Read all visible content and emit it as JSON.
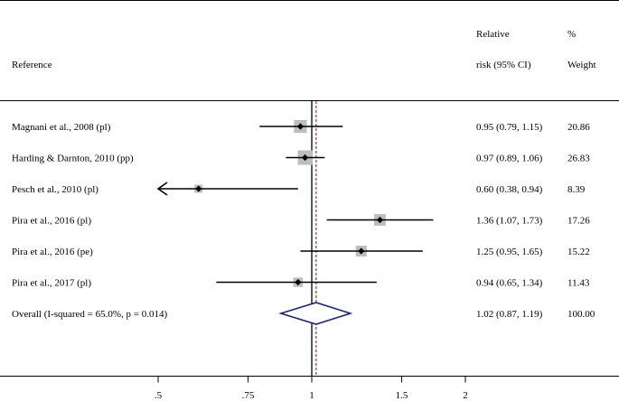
{
  "chart_data": {
    "type": "forest",
    "headers": {
      "reference": "Reference",
      "rr_line1": "Relative",
      "rr_line2": "risk (95% CI)",
      "weight_line1": "%",
      "weight_line2": "Weight"
    },
    "studies": [
      {
        "label": "Magnani et al., 2008 (pl)",
        "rr": 0.95,
        "lo": 0.79,
        "hi": 1.15,
        "ci_text": "0.95 (0.79, 1.15)",
        "weight": "20.86",
        "weight_value": 20.86
      },
      {
        "label": "Harding & Darnton, 2010 (pp)",
        "rr": 0.97,
        "lo": 0.89,
        "hi": 1.06,
        "ci_text": "0.97 (0.89, 1.06)",
        "weight": "26.83",
        "weight_value": 26.83
      },
      {
        "label": "Pesch et al., 2010 (pl)",
        "rr": 0.6,
        "lo": 0.38,
        "hi": 0.94,
        "ci_text": "0.60 (0.38, 0.94)",
        "weight": "8.39",
        "weight_value": 8.39,
        "lower_truncated": true
      },
      {
        "label": "Pira et al., 2016 (pl)",
        "rr": 1.36,
        "lo": 1.07,
        "hi": 1.73,
        "ci_text": "1.36 (1.07, 1.73)",
        "weight": "17.26",
        "weight_value": 17.26
      },
      {
        "label": "Pira et al., 2016 (pe)",
        "rr": 1.25,
        "lo": 0.95,
        "hi": 1.65,
        "ci_text": "1.25 (0.95, 1.65)",
        "weight": "15.22",
        "weight_value": 15.22
      },
      {
        "label": "Pira et al., 2017 (pl)",
        "rr": 0.94,
        "lo": 0.65,
        "hi": 1.34,
        "ci_text": "0.94 (0.65, 1.34)",
        "weight": "11.43",
        "weight_value": 11.43
      }
    ],
    "overall": {
      "label": "Overall  (I-squared = 65.0%, p = 0.014)",
      "rr": 1.02,
      "lo": 0.87,
      "hi": 1.19,
      "ci_text": "1.02 (0.87, 1.19)",
      "weight": "100.00"
    },
    "x_ticks": [
      {
        "value": 0.5,
        "label": ".5"
      },
      {
        "value": 0.75,
        "label": ".75"
      },
      {
        "value": 1,
        "label": "1"
      },
      {
        "value": 1.5,
        "label": "1.5"
      },
      {
        "value": 2,
        "label": "2"
      }
    ],
    "xlim": [
      0.5,
      2
    ],
    "log_scale": true,
    "null_line": 1,
    "colors": {
      "box": "#bdbdbd",
      "diamond": "#1a237e",
      "overall_line": "#a02020",
      "line": "#000000"
    }
  }
}
